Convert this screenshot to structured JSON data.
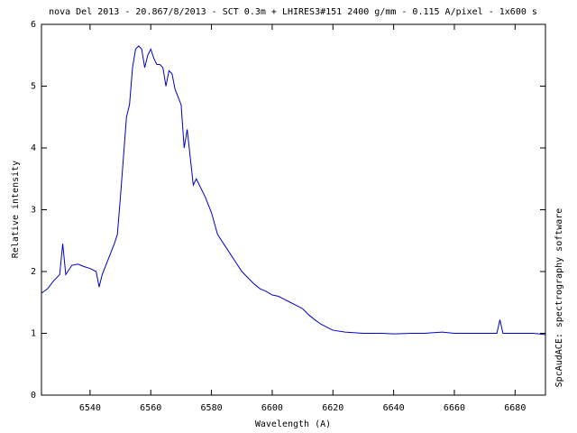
{
  "chart_data": {
    "type": "line",
    "title": "nova Del 2013 - 20.867/8/2013 - SCT 0.3m + LHIRES3#151 2400 g/mm - 0.115 A/pixel - 1x600 s",
    "x_label": "Wavelength (A)",
    "y_label": "Relative intensity",
    "side_note": "SpcAudACE: spectrography software",
    "x": [
      6524,
      6526,
      6528,
      6530,
      6531,
      6532,
      6534,
      6536,
      6538,
      6540,
      6542,
      6543,
      6544,
      6546,
      6548,
      6549,
      6550,
      6552,
      6553,
      6554,
      6555,
      6556,
      6557,
      6558,
      6559,
      6560,
      6561,
      6562,
      6563,
      6564,
      6565,
      6566,
      6567,
      6568,
      6570,
      6571,
      6572,
      6573,
      6574,
      6575,
      6576,
      6578,
      6580,
      6582,
      6584,
      6586,
      6588,
      6590,
      6592,
      6594,
      6596,
      6598,
      6600,
      6602,
      6604,
      6606,
      6608,
      6610,
      6612,
      6614,
      6616,
      6618,
      6620,
      6624,
      6630,
      6636,
      6640,
      6646,
      6650,
      6656,
      6660,
      6666,
      6670,
      6674,
      6675,
      6676,
      6680,
      6686,
      6690
    ],
    "series": [
      {
        "name": "nova Del 2013",
        "color": "#0000cc",
        "values": [
          1.65,
          1.72,
          1.85,
          1.95,
          2.45,
          1.95,
          2.1,
          2.12,
          2.08,
          2.05,
          2.0,
          1.75,
          1.95,
          2.2,
          2.45,
          2.6,
          3.2,
          4.5,
          4.7,
          5.3,
          5.6,
          5.65,
          5.6,
          5.3,
          5.5,
          5.6,
          5.45,
          5.35,
          5.35,
          5.3,
          5.0,
          5.25,
          5.2,
          4.95,
          4.7,
          4.0,
          4.3,
          3.85,
          3.4,
          3.5,
          3.4,
          3.2,
          2.95,
          2.6,
          2.45,
          2.3,
          2.15,
          2.0,
          1.9,
          1.8,
          1.72,
          1.68,
          1.62,
          1.6,
          1.55,
          1.5,
          1.45,
          1.4,
          1.3,
          1.22,
          1.15,
          1.1,
          1.05,
          1.02,
          1.0,
          1.0,
          0.99,
          1.0,
          1.0,
          1.02,
          1.0,
          1.0,
          1.0,
          1.0,
          1.22,
          1.0,
          1.0,
          1.0,
          0.98
        ]
      }
    ],
    "xlim": [
      6524,
      6690
    ],
    "ylim": [
      0,
      6
    ],
    "xticks": [
      6540,
      6560,
      6580,
      6600,
      6620,
      6640,
      6660,
      6680
    ],
    "yticks": [
      0,
      1,
      2,
      3,
      4,
      5,
      6
    ]
  }
}
